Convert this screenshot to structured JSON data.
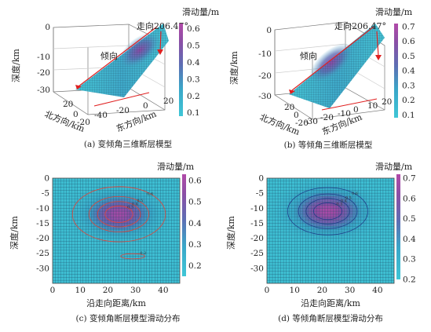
{
  "chart_data": [
    {
      "panel": "a",
      "type": "surface3d",
      "caption": "(a) 变倾角三维断层模型",
      "colorbar": {
        "title": "滑动量/m",
        "ticks": [
          "0.6",
          "0.5",
          "0.4",
          "0.3",
          "0.2",
          "0.1"
        ],
        "range": [
          0.08,
          0.63
        ]
      },
      "axes": {
        "depth": {
          "label": "深度/km",
          "ticks": [
            "0",
            "-10",
            "-20",
            "-30"
          ]
        },
        "north": {
          "label": "北方向/km",
          "ticks": [
            "20",
            "0",
            "-20"
          ]
        },
        "east": {
          "label": "东方向/km",
          "ticks": [
            "-40",
            "-20",
            "0",
            "20"
          ]
        }
      },
      "annotations": {
        "strike": "走向206.47°",
        "dip": "倾向"
      }
    },
    {
      "panel": "b",
      "type": "surface3d",
      "caption": "(b) 等倾角三维断层模型",
      "colorbar": {
        "title": "滑动量/m",
        "ticks": [
          "0.7",
          "0.6",
          "0.5",
          "0.4",
          "0.3",
          "0.2",
          "0.1"
        ],
        "range": [
          0.08,
          0.72
        ]
      },
      "axes": {
        "depth": {
          "label": "深度/km",
          "ticks": [
            "0",
            "-10",
            "-20",
            "-30"
          ]
        },
        "north": {
          "label": "北方向/km",
          "ticks": [
            "20",
            "0",
            "-20"
          ]
        },
        "east": {
          "label": "东方向/km",
          "ticks": [
            "-30",
            "-20",
            "-10",
            "0",
            "10",
            "20"
          ]
        }
      },
      "annotations": {
        "strike": "走向206.47°",
        "dip": "倾向"
      }
    },
    {
      "panel": "c",
      "type": "heatmap",
      "caption": "(c) 变倾角断层模型滑动分布",
      "xlabel": "沿走向距离/km",
      "ylabel": "深度/km",
      "xticks": [
        0,
        10,
        20,
        30,
        40
      ],
      "yticks": [
        0,
        -5,
        -10,
        -15,
        -20,
        -25,
        -30
      ],
      "xlim": [
        0,
        46
      ],
      "ylim": [
        -35,
        0
      ],
      "colorbar": {
        "title": "滑动量/m",
        "ticks": [
          0.6,
          0.5,
          0.4,
          0.3,
          0.2
        ],
        "range": [
          0.15,
          0.63
        ]
      },
      "contour_labels": [
        "0.6",
        "0.5",
        "0.4",
        "0.3",
        "0.2",
        "0.2"
      ],
      "slip_patches": [
        {
          "x": 24,
          "y": -12,
          "peak": 0.6,
          "rx": 11,
          "ry": 6
        },
        {
          "x": 29,
          "y": -26,
          "peak": 0.22,
          "rx": 6,
          "ry": 1.2
        }
      ]
    },
    {
      "panel": "d",
      "type": "heatmap",
      "caption": "(d) 等倾角断层模型滑动分布",
      "xlabel": "沿走向距离/km",
      "ylabel": "深度/km",
      "xticks": [
        0,
        10,
        20,
        30,
        40
      ],
      "yticks": [
        0,
        -5,
        -10,
        -15,
        -20,
        -25,
        -30
      ],
      "xlim": [
        0,
        46
      ],
      "ylim": [
        -35,
        0
      ],
      "colorbar": {
        "title": "滑动量/m",
        "ticks": [
          0.7,
          0.6,
          0.5,
          0.4,
          0.3,
          0.2
        ],
        "range": [
          0.2,
          0.72
        ]
      },
      "contour_labels": [
        "0.7",
        "0.6",
        "0.5",
        "0.4",
        "0.3",
        "0.2"
      ],
      "slip_patches": [
        {
          "x": 22,
          "y": -11,
          "peak": 0.7,
          "rx": 12,
          "ry": 6.5
        }
      ]
    }
  ]
}
